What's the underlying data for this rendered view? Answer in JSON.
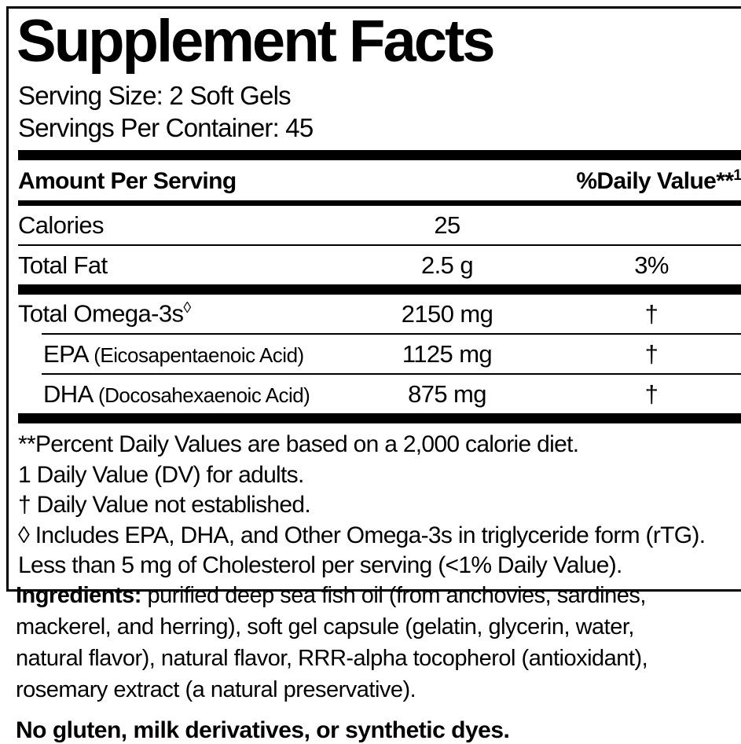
{
  "panel": {
    "title": "Supplement Facts",
    "serving_size": "Serving Size: 2 Soft Gels",
    "servings_per_container": "Servings Per Container: 45",
    "header": {
      "amount_label": "Amount Per Serving",
      "dv_label": "%Daily Value",
      "dv_marks": "**",
      "dv_sup": "1"
    },
    "rows": [
      {
        "name": "Calories",
        "amount": "25",
        "dv": ""
      },
      {
        "name": "Total Fat",
        "amount": "2.5 g",
        "dv": "3%"
      },
      {
        "name": "Total Omega-3s",
        "name_sup": "◊",
        "amount": "2150 mg",
        "dv": "†"
      },
      {
        "name": "EPA",
        "detail": "(Eicosapentaenoic Acid)",
        "amount": "1125 mg",
        "dv": "†"
      },
      {
        "name": "DHA",
        "detail": "(Docosahexaenoic Acid)",
        "amount": "875 mg",
        "dv": "†"
      }
    ],
    "footnotes": [
      "**Percent Daily Values are based on a 2,000 calorie diet.",
      "1 Daily Value (DV) for adults.",
      "† Daily Value not established.",
      "◊ Includes EPA, DHA, and Other Omega-3s in triglyceride form (rTG).",
      "Less than 5 mg of Cholesterol per serving (<1% Daily Value)."
    ]
  },
  "below": {
    "ingredients_label": "Ingredients:",
    "ingredients_line1": " purified deep sea fish oil (from anchovies, sardines,",
    "ingredients_rest": "mackerel, and herring), soft gel capsule (gelatin, glycerin, water,\nnatural flavor), natural flavor, RRR-alpha tocopherol (antioxidant),\nrosemary extract (a natural preservative).",
    "allergen_statement": "No gluten, milk derivatives, or synthetic dyes."
  },
  "colors": {
    "ink": "#000000",
    "background": "#ffffff"
  }
}
